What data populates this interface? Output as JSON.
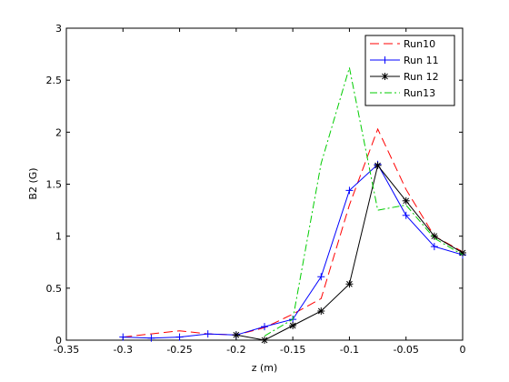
{
  "chart_data": {
    "type": "line",
    "title": "",
    "xlabel": "z (m)",
    "ylabel": "B2 (G)",
    "xlim": [
      -0.35,
      0
    ],
    "ylim": [
      0,
      3
    ],
    "xticks": [
      "-0.35",
      "-0.3",
      "-0.25",
      "-0.2",
      "-0.15",
      "-0.1",
      "-0.05",
      "0"
    ],
    "yticks": [
      "0",
      "0.5",
      "1",
      "1.5",
      "2",
      "2.5",
      "3"
    ],
    "grid": false,
    "legend_position": "top-right",
    "series": [
      {
        "name": "Run10",
        "color": "#ff0000",
        "line_style": "dashed",
        "marker": "none",
        "x": [
          -0.3,
          -0.275,
          -0.25,
          -0.225,
          -0.2,
          -0.175,
          -0.15,
          -0.125,
          -0.1,
          -0.075,
          -0.05,
          -0.025,
          0
        ],
        "y": [
          0.03,
          0.06,
          0.09,
          0.06,
          0.05,
          0.12,
          0.25,
          0.4,
          1.3,
          2.03,
          1.45,
          1.0,
          0.85
        ]
      },
      {
        "name": "Run 11",
        "color": "#0000ff",
        "line_style": "solid",
        "marker": "plus",
        "x": [
          -0.3,
          -0.275,
          -0.25,
          -0.225,
          -0.2,
          -0.175,
          -0.15,
          -0.125,
          -0.1,
          -0.075,
          -0.05,
          -0.025,
          0
        ],
        "y": [
          0.03,
          0.02,
          0.03,
          0.06,
          0.05,
          0.13,
          0.2,
          0.61,
          1.44,
          1.69,
          1.2,
          0.9,
          0.82
        ]
      },
      {
        "name": "Run 12",
        "color": "#000000",
        "line_style": "solid",
        "marker": "asterisk",
        "x": [
          -0.2,
          -0.175,
          -0.15,
          -0.125,
          -0.1,
          -0.075,
          -0.05,
          -0.025,
          0
        ],
        "y": [
          0.05,
          0.0,
          0.14,
          0.28,
          0.54,
          1.68,
          1.34,
          1.0,
          0.84
        ]
      },
      {
        "name": "Run13",
        "color": "#00cc00",
        "line_style": "dashdot",
        "marker": "none",
        "x": [
          -0.175,
          -0.15,
          -0.125,
          -0.1,
          -0.075,
          -0.05,
          -0.025,
          0
        ],
        "y": [
          0.04,
          0.2,
          1.7,
          2.62,
          1.25,
          1.3,
          0.98,
          0.82
        ]
      }
    ]
  }
}
